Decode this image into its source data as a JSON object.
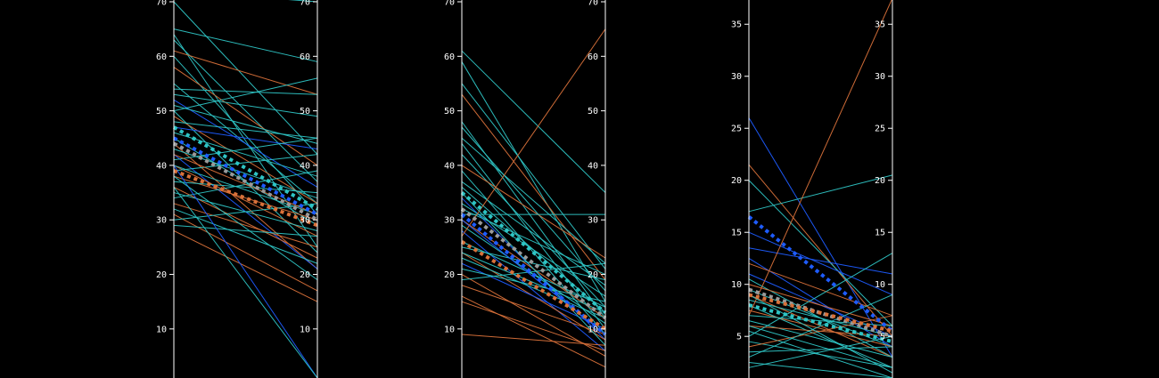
{
  "colors": {
    "background": "#000000",
    "axis": "#ffffff",
    "teal": "#2ec4c4",
    "orange": "#d9713a",
    "blue": "#1e5cff",
    "grey": "#9a9a9a"
  },
  "chart_data": [
    {
      "type": "parallel-slope",
      "panel": 1,
      "ylim": [
        1,
        70
      ],
      "ticks": [
        10,
        20,
        30,
        40,
        50,
        60,
        70
      ],
      "tick_labels": [
        "10",
        "20",
        "30",
        "40",
        "50",
        "60",
        "70"
      ],
      "lines": [
        {
          "color": "teal",
          "start": 72,
          "end": 70
        },
        {
          "color": "teal",
          "start": 70,
          "end": 42
        },
        {
          "color": "teal",
          "start": 65,
          "end": 59
        },
        {
          "color": "teal",
          "start": 64,
          "end": 25
        },
        {
          "color": "teal",
          "start": 63,
          "end": 37
        },
        {
          "color": "teal",
          "start": 60,
          "end": 31
        },
        {
          "color": "orange",
          "start": 61,
          "end": 53
        },
        {
          "color": "orange",
          "start": 58,
          "end": 40
        },
        {
          "color": "teal",
          "start": 55,
          "end": 33
        },
        {
          "color": "teal",
          "start": 54,
          "end": 53
        },
        {
          "color": "teal",
          "start": 53,
          "end": 49
        },
        {
          "color": "blue",
          "start": 52,
          "end": 36
        },
        {
          "color": "teal",
          "start": 51,
          "end": 44
        },
        {
          "color": "teal",
          "start": 50,
          "end": 24
        },
        {
          "color": "teal",
          "start": 50,
          "end": 56
        },
        {
          "color": "orange",
          "start": 49,
          "end": 33
        },
        {
          "color": "teal",
          "start": 48,
          "end": 45
        },
        {
          "color": "blue",
          "start": 47,
          "end": 43
        },
        {
          "color": "teal",
          "start": 46,
          "end": 38
        },
        {
          "color": "teal",
          "start": 45,
          "end": 29
        },
        {
          "color": "orange",
          "start": 44,
          "end": 21
        },
        {
          "color": "teal",
          "start": 43,
          "end": 34
        },
        {
          "color": "blue",
          "start": 42,
          "end": 21
        },
        {
          "color": "teal",
          "start": 41,
          "end": 45
        },
        {
          "color": "orange",
          "start": 40,
          "end": 27
        },
        {
          "color": "teal",
          "start": 40,
          "end": 31
        },
        {
          "color": "teal",
          "start": 39,
          "end": 42
        },
        {
          "color": "orange",
          "start": 38,
          "end": 30
        },
        {
          "color": "teal",
          "start": 37,
          "end": 35
        },
        {
          "color": "orange",
          "start": 36,
          "end": 23
        },
        {
          "color": "teal",
          "start": 35,
          "end": 28
        },
        {
          "color": "teal",
          "start": 34,
          "end": 39
        },
        {
          "color": "orange",
          "start": 33,
          "end": 25
        },
        {
          "color": "teal",
          "start": 32,
          "end": 22
        },
        {
          "color": "orange",
          "start": 31,
          "end": 17
        },
        {
          "color": "teal",
          "start": 30,
          "end": 33
        },
        {
          "color": "teal",
          "start": 29,
          "end": 27
        },
        {
          "color": "orange",
          "start": 28,
          "end": 15
        },
        {
          "color": "blue",
          "start": 40,
          "end": 1
        },
        {
          "color": "teal",
          "start": 36,
          "end": 1
        },
        {
          "color": "teal",
          "start": 38,
          "end": 19
        },
        {
          "color": "orange",
          "start": 42,
          "end": 31
        }
      ],
      "mean_lines": [
        {
          "color": "teal",
          "start": 47,
          "end": 32
        },
        {
          "color": "blue",
          "start": 45,
          "end": 31
        },
        {
          "color": "grey",
          "start": 44,
          "end": 30
        },
        {
          "color": "orange",
          "start": 39,
          "end": 29
        }
      ]
    },
    {
      "type": "parallel-slope",
      "panel": 2,
      "ylim": [
        1,
        70
      ],
      "ticks": [
        10,
        20,
        30,
        40,
        50,
        60,
        70
      ],
      "tick_labels": [
        "10",
        "20",
        "30",
        "40",
        "50",
        "60",
        "70"
      ],
      "lines": [
        {
          "color": "teal",
          "start": 61,
          "end": 35
        },
        {
          "color": "teal",
          "start": 59,
          "end": 15
        },
        {
          "color": "teal",
          "start": 55,
          "end": 21
        },
        {
          "color": "orange",
          "start": 53,
          "end": 19
        },
        {
          "color": "teal",
          "start": 48,
          "end": 12
        },
        {
          "color": "teal",
          "start": 47,
          "end": 17
        },
        {
          "color": "teal",
          "start": 45,
          "end": 22
        },
        {
          "color": "teal",
          "start": 44,
          "end": 10
        },
        {
          "color": "teal",
          "start": 42,
          "end": 14
        },
        {
          "color": "orange",
          "start": 40,
          "end": 23
        },
        {
          "color": "teal",
          "start": 39,
          "end": 9
        },
        {
          "color": "teal",
          "start": 37,
          "end": 18
        },
        {
          "color": "teal",
          "start": 36,
          "end": 13
        },
        {
          "color": "blue",
          "start": 34,
          "end": 8
        },
        {
          "color": "teal",
          "start": 33,
          "end": 16
        },
        {
          "color": "teal",
          "start": 32,
          "end": 20
        },
        {
          "color": "teal",
          "start": 31,
          "end": 31
        },
        {
          "color": "orange",
          "start": 30,
          "end": 12
        },
        {
          "color": "teal",
          "start": 29,
          "end": 11
        },
        {
          "color": "blue",
          "start": 28,
          "end": 6
        },
        {
          "color": "orange",
          "start": 27,
          "end": 65
        },
        {
          "color": "teal",
          "start": 26,
          "end": 14
        },
        {
          "color": "teal",
          "start": 25,
          "end": 19
        },
        {
          "color": "orange",
          "start": 24,
          "end": 8
        },
        {
          "color": "teal",
          "start": 23,
          "end": 12
        },
        {
          "color": "blue",
          "start": 22,
          "end": 10
        },
        {
          "color": "teal",
          "start": 21,
          "end": 15
        },
        {
          "color": "orange",
          "start": 20,
          "end": 5
        },
        {
          "color": "teal",
          "start": 19,
          "end": 22
        },
        {
          "color": "orange",
          "start": 18,
          "end": 9
        },
        {
          "color": "orange",
          "start": 16,
          "end": 3
        },
        {
          "color": "orange",
          "start": 15,
          "end": 6
        },
        {
          "color": "orange",
          "start": 9,
          "end": 7
        },
        {
          "color": "teal",
          "start": 24,
          "end": 13
        },
        {
          "color": "blue",
          "start": 30,
          "end": 9
        },
        {
          "color": "teal",
          "start": 35,
          "end": 7
        }
      ],
      "mean_lines": [
        {
          "color": "teal",
          "start": 35,
          "end": 13
        },
        {
          "color": "grey",
          "start": 32,
          "end": 12
        },
        {
          "color": "blue",
          "start": 31,
          "end": 9
        },
        {
          "color": "orange",
          "start": 26,
          "end": 10
        }
      ]
    },
    {
      "type": "parallel-slope",
      "panel": 3,
      "ylim": [
        1,
        37.5
      ],
      "ticks": [
        5,
        10,
        15,
        20,
        25,
        30,
        35
      ],
      "tick_labels": [
        "5",
        "10",
        "15",
        "20",
        "25",
        "30",
        "35"
      ],
      "lines": [
        {
          "color": "blue",
          "start": 26,
          "end": 3
        },
        {
          "color": "orange",
          "start": 21.5,
          "end": 5
        },
        {
          "color": "teal",
          "start": 20,
          "end": 6
        },
        {
          "color": "teal",
          "start": 17,
          "end": 20.5
        },
        {
          "color": "blue",
          "start": 15,
          "end": 9
        },
        {
          "color": "blue",
          "start": 13.5,
          "end": 11
        },
        {
          "color": "blue",
          "start": 12.5,
          "end": 4
        },
        {
          "color": "orange",
          "start": 12,
          "end": 7
        },
        {
          "color": "blue",
          "start": 11,
          "end": 5
        },
        {
          "color": "teal",
          "start": 10.5,
          "end": 3
        },
        {
          "color": "orange",
          "start": 10,
          "end": 6
        },
        {
          "color": "teal",
          "start": 9.5,
          "end": 4
        },
        {
          "color": "orange",
          "start": 9,
          "end": 3
        },
        {
          "color": "teal",
          "start": 8.5,
          "end": 5
        },
        {
          "color": "teal",
          "start": 8,
          "end": 2
        },
        {
          "color": "orange",
          "start": 7.5,
          "end": 4
        },
        {
          "color": "teal",
          "start": 7,
          "end": 6
        },
        {
          "color": "teal",
          "start": 6.5,
          "end": 3
        },
        {
          "color": "orange",
          "start": 6,
          "end": 5
        },
        {
          "color": "teal",
          "start": 5.5,
          "end": 1
        },
        {
          "color": "teal",
          "start": 5,
          "end": 13
        },
        {
          "color": "teal",
          "start": 4.5,
          "end": 2
        },
        {
          "color": "orange",
          "start": 4,
          "end": 7
        },
        {
          "color": "teal",
          "start": 3.5,
          "end": 4
        },
        {
          "color": "teal",
          "start": 3,
          "end": 9
        },
        {
          "color": "teal",
          "start": 2.5,
          "end": 1
        },
        {
          "color": "teal",
          "start": 2,
          "end": 5
        },
        {
          "color": "orange",
          "start": 7,
          "end": 37.5
        },
        {
          "color": "teal",
          "start": 6,
          "end": 2
        },
        {
          "color": "teal",
          "start": 9,
          "end": 1.5
        }
      ],
      "mean_lines": [
        {
          "color": "blue",
          "start": 16.5,
          "end": 5.5
        },
        {
          "color": "grey",
          "start": 9.5,
          "end": 5
        },
        {
          "color": "orange",
          "start": 9,
          "end": 5.5
        },
        {
          "color": "teal",
          "start": 8,
          "end": 4.5
        }
      ]
    }
  ]
}
